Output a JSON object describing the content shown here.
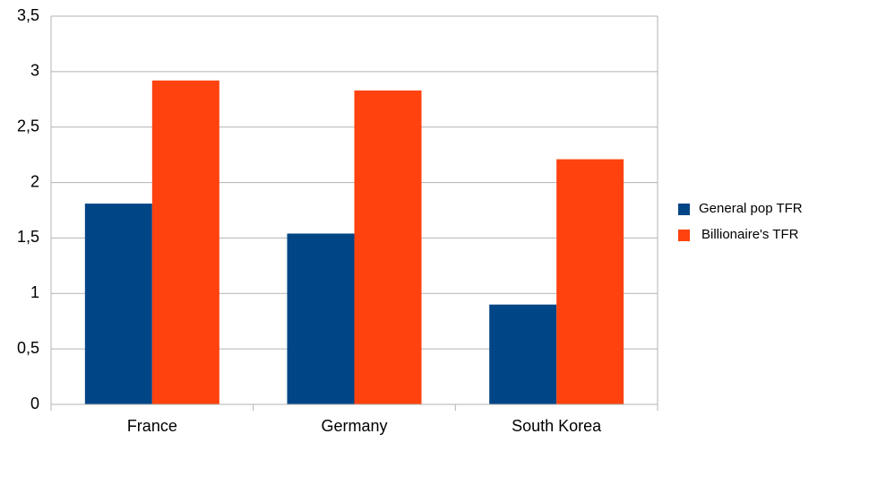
{
  "chart_data": {
    "type": "bar",
    "categories": [
      "France",
      "Germany",
      "South Korea"
    ],
    "series": [
      {
        "name": "General pop TFR",
        "color": "#004586",
        "values": [
          1.81,
          1.54,
          0.9
        ]
      },
      {
        "name": "Billionaire's TFR",
        "color": "#ff420e",
        "values": [
          2.92,
          2.83,
          2.21
        ]
      }
    ],
    "ylim": [
      0,
      3.5
    ],
    "yticks": [
      0,
      {
        "value": 0.5,
        "label": "0,5"
      },
      1,
      {
        "value": 1.5,
        "label": "1,5"
      },
      2,
      {
        "value": 2.5,
        "label": "2,5"
      },
      3,
      {
        "value": 3.5,
        "label": "3,5"
      }
    ],
    "grid": true,
    "legend": "right"
  }
}
